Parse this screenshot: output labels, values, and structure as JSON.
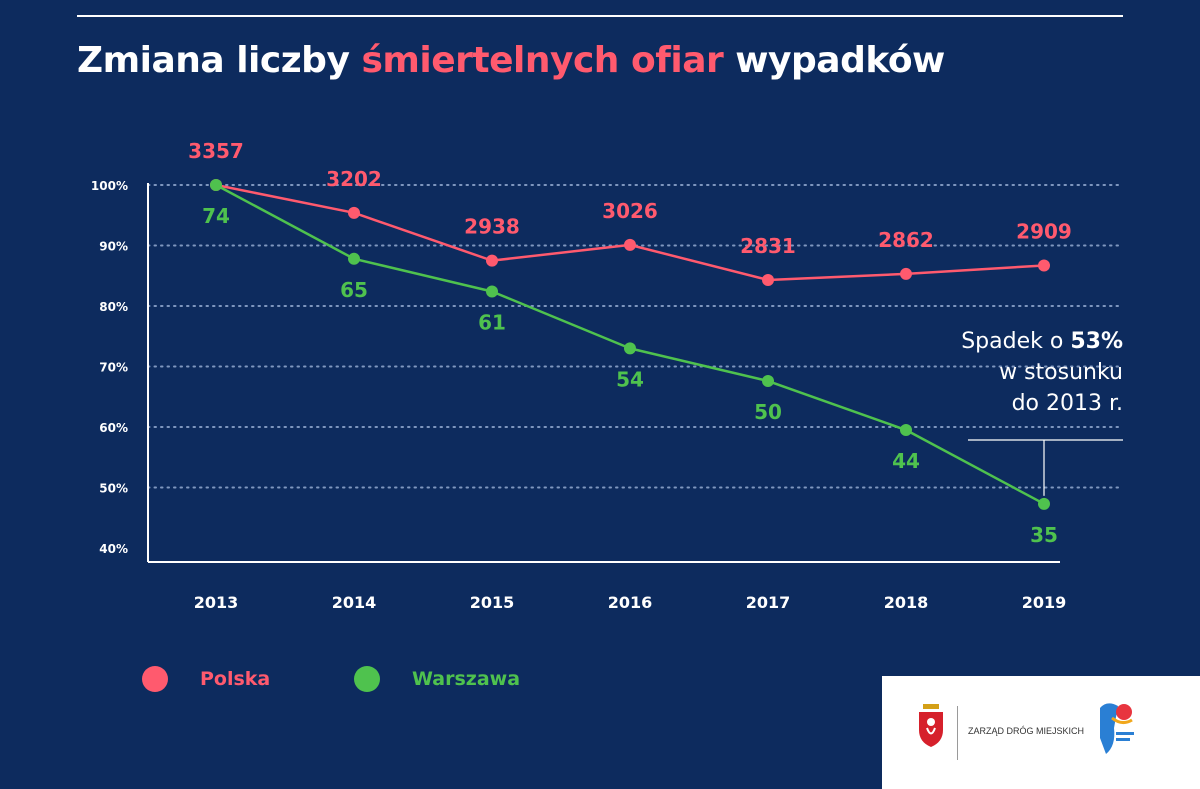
{
  "title": {
    "part1": "Zmiana liczby ",
    "accent": "śmiertelnych ofiar",
    "part2": " wypadków"
  },
  "colors": {
    "background": "#0d2b5e",
    "polska": "#ff5a6e",
    "warszawa": "#4fc24e",
    "text": "#ffffff"
  },
  "chart_data": {
    "type": "line",
    "x": [
      "2013",
      "2014",
      "2015",
      "2016",
      "2017",
      "2018",
      "2019"
    ],
    "y_ticks": [
      "100%",
      "90%",
      "80%",
      "70%",
      "60%",
      "50%",
      "40%"
    ],
    "ylim": [
      40,
      100
    ],
    "grid": true,
    "legend_position": "bottom-left",
    "series": [
      {
        "name": "Polska",
        "color": "#ff5a6e",
        "values": [
          100,
          95.4,
          87.5,
          90.1,
          84.3,
          85.3,
          86.7
        ],
        "labels": [
          "3357",
          "3202",
          "2938",
          "3026",
          "2831",
          "2862",
          "2909"
        ]
      },
      {
        "name": "Warszawa",
        "color": "#4fc24e",
        "values": [
          100,
          87.8,
          82.4,
          73.0,
          67.6,
          59.5,
          47.3
        ],
        "labels": [
          "74",
          "65",
          "61",
          "54",
          "50",
          "44",
          "35"
        ]
      }
    ]
  },
  "legend": {
    "polska": "Polska",
    "warszawa": "Warszawa"
  },
  "annotation": {
    "line1_prefix": "Spadek o ",
    "line1_value": "53%",
    "line2": "w stosunku",
    "line3": "do 2013 r."
  },
  "logo": {
    "org_name": "ZARZĄD DRÓG MIEJSKICH",
    "crest_icon": "warsaw-crest-icon",
    "campaign_icon": "campaign-logo-icon"
  }
}
